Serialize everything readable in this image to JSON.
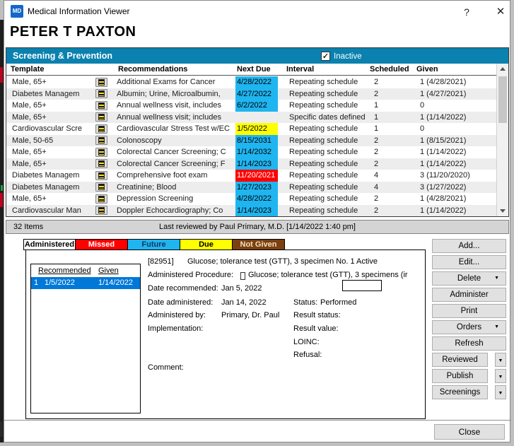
{
  "window": {
    "title": "Medical Information Viewer",
    "app_icon": "MD",
    "help_glyph": "?",
    "close_glyph": "✕",
    "patient_name": "PETER T PAXTON"
  },
  "screening_panel": {
    "title": "Screening & Prevention",
    "inactive_label": "Inactive",
    "inactive_checked": true,
    "columns": [
      "Template",
      "Recommendations",
      "Next Due",
      "Interval",
      "Scheduled",
      "Given"
    ],
    "rows": [
      {
        "template": "Male, 65+",
        "recommendation": "Additional Exams for Cancer",
        "next_due": "4/28/2022",
        "due_status": "future",
        "interval": "Repeating schedule",
        "scheduled": "2",
        "given": "1 (4/28/2021)"
      },
      {
        "template": "Diabetes Managem",
        "recommendation": "Albumin; Urine, Microalbumin,",
        "next_due": "4/27/2022",
        "due_status": "future",
        "interval": "Repeating schedule",
        "scheduled": "2",
        "given": "1 (4/27/2021)"
      },
      {
        "template": "Male, 65+",
        "recommendation": "Annual wellness visit, includes",
        "next_due": "6/2/2022",
        "due_status": "future",
        "interval": "Repeating schedule",
        "scheduled": "1",
        "given": "0"
      },
      {
        "template": "Male, 65+",
        "recommendation": "Annual wellness visit; includes",
        "next_due": "",
        "due_status": "none",
        "interval": "Specific dates defined",
        "scheduled": "1",
        "given": "1 (1/14/2022)"
      },
      {
        "template": "Cardiovascular Scre",
        "recommendation": "Cardiovascular Stress Test w/EC",
        "next_due": "1/5/2022",
        "due_status": "due",
        "interval": "Repeating schedule",
        "scheduled": "1",
        "given": "0"
      },
      {
        "template": "Male, 50-65",
        "recommendation": "Colonoscopy",
        "next_due": "8/15/2031",
        "due_status": "future",
        "interval": "Repeating schedule",
        "scheduled": "2",
        "given": "1 (8/15/2021)"
      },
      {
        "template": "Male, 65+",
        "recommendation": "Colorectal Cancer Screening; C",
        "next_due": "1/14/2032",
        "due_status": "future",
        "interval": "Repeating schedule",
        "scheduled": "2",
        "given": "1 (1/14/2022)"
      },
      {
        "template": "Male, 65+",
        "recommendation": "Colorectal Cancer Screening; F",
        "next_due": "1/14/2023",
        "due_status": "future",
        "interval": "Repeating schedule",
        "scheduled": "2",
        "given": "1 (1/14/2022)"
      },
      {
        "template": "Diabetes Managem",
        "recommendation": "Comprehensive foot exam",
        "next_due": "11/20/2021",
        "due_status": "missed",
        "interval": "Repeating schedule",
        "scheduled": "4",
        "given": "3 (11/20/2020)"
      },
      {
        "template": "Diabetes Managem",
        "recommendation": "Creatinine; Blood",
        "next_due": "1/27/2023",
        "due_status": "future",
        "interval": "Repeating schedule",
        "scheduled": "4",
        "given": "3 (1/27/2022)"
      },
      {
        "template": "Male, 65+",
        "recommendation": "Depression Screening",
        "next_due": "4/28/2022",
        "due_status": "future",
        "interval": "Repeating schedule",
        "scheduled": "2",
        "given": "1 (4/28/2021)"
      },
      {
        "template": "Cardiovascular Man",
        "recommendation": "Doppler Echocardiography; Co",
        "next_due": "1/14/2023",
        "due_status": "future",
        "interval": "Repeating schedule",
        "scheduled": "2",
        "given": "1 (1/14/2022)"
      }
    ],
    "status_left": "32 Items",
    "status_center": "Last reviewed by Paul Primary, M.D. [1/14/2022 1:40 pm]"
  },
  "legend": [
    {
      "label": "Administered",
      "color": "#FFFFFF",
      "text_color": "#000000"
    },
    {
      "label": "Missed",
      "color": "#FF0000",
      "text_color": "#FFFFFF"
    },
    {
      "label": "Future",
      "color": "#1FB5F0",
      "text_color": "#17365D"
    },
    {
      "label": "Due",
      "color": "#FFFF00",
      "text_color": "#000000"
    },
    {
      "label": "Not Given",
      "color": "#7B3F10",
      "text_color": "#F0E0C0"
    }
  ],
  "detail": {
    "mini_table": {
      "columns": [
        "Recommended",
        "Given"
      ],
      "rows": [
        {
          "num": "1",
          "recommended": "1/5/2022",
          "given": "1/14/2022",
          "selected": true
        }
      ]
    },
    "code": "[82951]",
    "code_desc": "Glucose; tolerance test (GTT), 3 specimen No. 1 Active",
    "administered_procedure_label": "Administered Procedure:",
    "administered_procedure_value": "Glucose; tolerance test (GTT), 3 specimens (ir",
    "date_recommended_label": "Date recommended:",
    "date_recommended_value": "Jan 5, 2022",
    "date_administered_label": "Date administered:",
    "date_administered_value": "Jan 14, 2022",
    "status_label": "Status:",
    "status_value": "Performed",
    "administered_by_label": "Administered by:",
    "administered_by_value": "Primary, Dr. Paul",
    "result_status_label": "Result status:",
    "implementation_label": "Implementation:",
    "result_value_label": "Result value:",
    "loinc_label": "LOINC:",
    "refusal_label": "Refusal:",
    "comment_label": "Comment:"
  },
  "actions": {
    "add": "Add...",
    "edit": "Edit...",
    "delete": "Delete",
    "administer": "Administer",
    "print": "Print",
    "orders": "Orders",
    "refresh": "Refresh",
    "reviewed": "Reviewed",
    "publish": "Publish",
    "screenings": "Screenings",
    "close": "Close",
    "dropdown_glyph": "▼"
  }
}
